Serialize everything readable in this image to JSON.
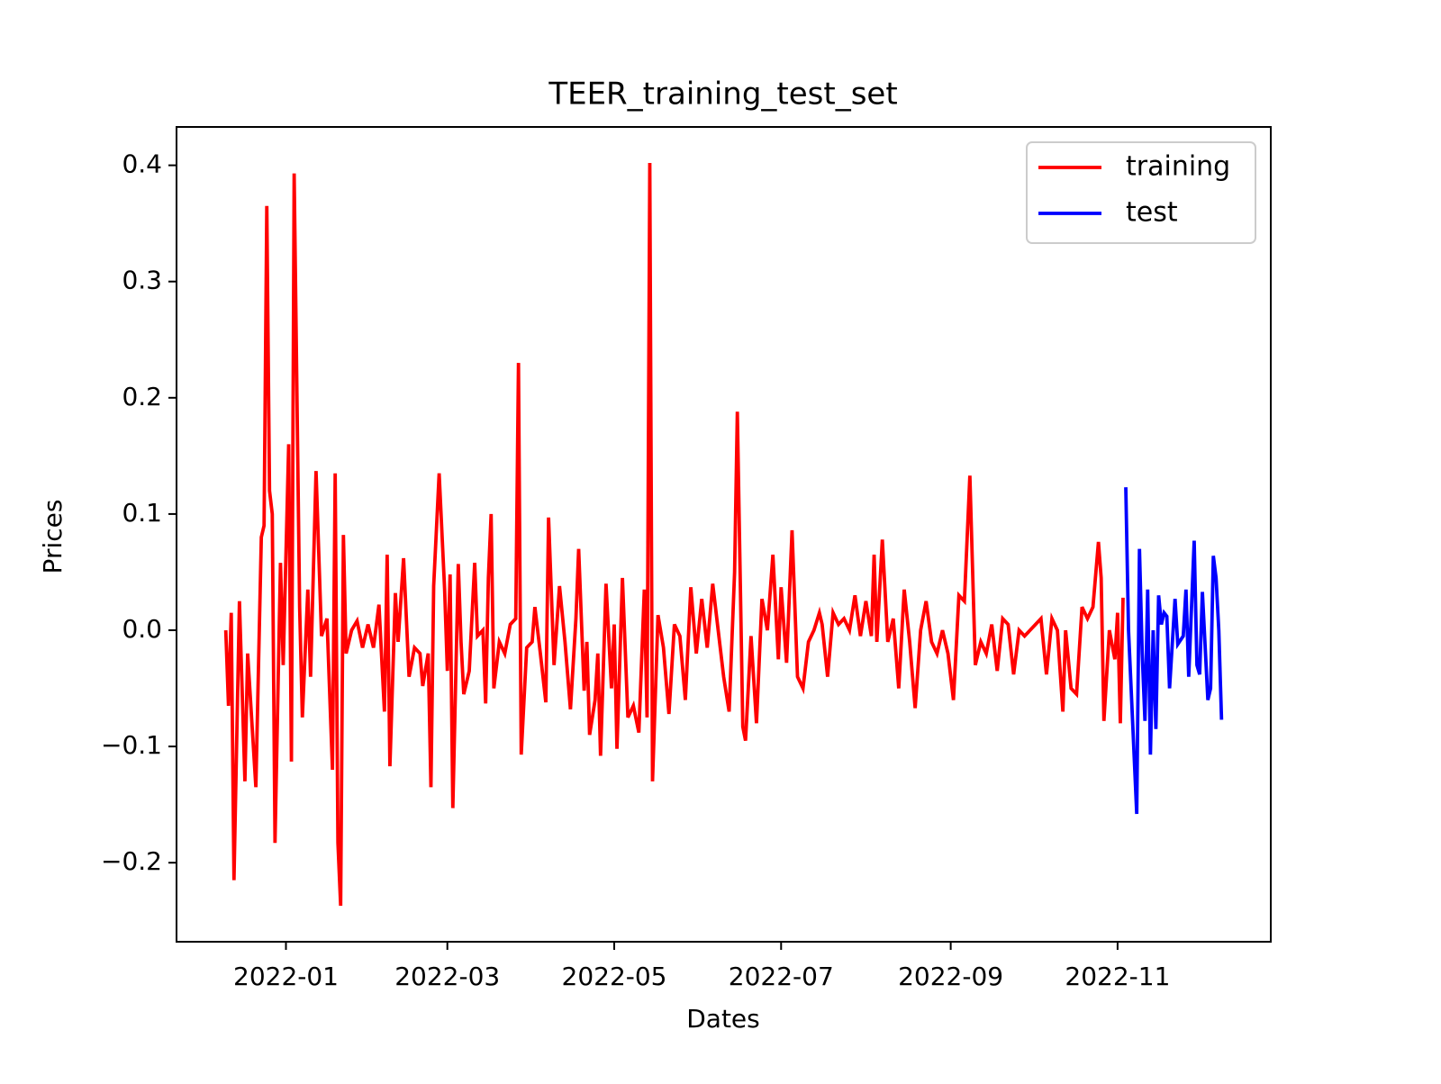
{
  "chart_data": {
    "type": "line",
    "title": "TEER_training_test_set",
    "xlabel": "Dates",
    "ylabel": "Prices",
    "legend": "upper right",
    "xlim": [
      "2021-11-22",
      "2022-12-27"
    ],
    "xticks": [
      {
        "value": "2022-01-01",
        "label": "2022-01"
      },
      {
        "value": "2022-03-01",
        "label": "2022-03"
      },
      {
        "value": "2022-05-01",
        "label": "2022-05"
      },
      {
        "value": "2022-07-01",
        "label": "2022-07"
      },
      {
        "value": "2022-09-01",
        "label": "2022-09"
      },
      {
        "value": "2022-11-01",
        "label": "2022-11"
      }
    ],
    "ylim": [
      -0.268,
      0.433
    ],
    "yticks": [
      {
        "value": -0.2,
        "label": "−0.2"
      },
      {
        "value": -0.1,
        "label": "−0.1"
      },
      {
        "value": 0,
        "label": "0.0"
      },
      0.1,
      0.2,
      0.3,
      0.4
    ],
    "series": [
      {
        "name": "training",
        "color": "#ff0000",
        "x": [
          "2021-12-10",
          "2021-12-11",
          "2021-12-12",
          "2021-12-13",
          "2021-12-15",
          "2021-12-17",
          "2021-12-18",
          "2021-12-21",
          "2021-12-23",
          "2021-12-24",
          "2021-12-25",
          "2021-12-26",
          "2021-12-27",
          "2021-12-28",
          "2021-12-30",
          "2021-12-31",
          "2022-01-02",
          "2022-01-03",
          "2022-01-04",
          "2022-01-06",
          "2022-01-07",
          "2022-01-09",
          "2022-01-10",
          "2022-01-12",
          "2022-01-14",
          "2022-01-16",
          "2022-01-18",
          "2022-01-19",
          "2022-01-20",
          "2022-01-21",
          "2022-01-22",
          "2022-01-23",
          "2022-01-25",
          "2022-01-27",
          "2022-01-29",
          "2022-01-31",
          "2022-02-02",
          "2022-02-04",
          "2022-02-06",
          "2022-02-07",
          "2022-02-08",
          "2022-02-10",
          "2022-02-11",
          "2022-02-13",
          "2022-02-15",
          "2022-02-17",
          "2022-02-19",
          "2022-02-20",
          "2022-02-22",
          "2022-02-23",
          "2022-02-24",
          "2022-02-26",
          "2022-02-28",
          "2022-03-01",
          "2022-03-02",
          "2022-03-03",
          "2022-03-05",
          "2022-03-06",
          "2022-03-07",
          "2022-03-09",
          "2022-03-11",
          "2022-03-12",
          "2022-03-14",
          "2022-03-15",
          "2022-03-16",
          "2022-03-17",
          "2022-03-18",
          "2022-03-20",
          "2022-03-22",
          "2022-03-24",
          "2022-03-26",
          "2022-03-27",
          "2022-03-28",
          "2022-03-30",
          "2022-04-01",
          "2022-04-02",
          "2022-04-04",
          "2022-04-06",
          "2022-04-07",
          "2022-04-09",
          "2022-04-11",
          "2022-04-13",
          "2022-04-15",
          "2022-04-17",
          "2022-04-18",
          "2022-04-20",
          "2022-04-21",
          "2022-04-22",
          "2022-04-24",
          "2022-04-25",
          "2022-04-26",
          "2022-04-28",
          "2022-04-30",
          "2022-05-01",
          "2022-05-02",
          "2022-05-04",
          "2022-05-06",
          "2022-05-08",
          "2022-05-10",
          "2022-05-12",
          "2022-05-13",
          "2022-05-14",
          "2022-05-15",
          "2022-05-17",
          "2022-05-19",
          "2022-05-21",
          "2022-05-23",
          "2022-05-25",
          "2022-05-27",
          "2022-05-29",
          "2022-05-31",
          "2022-06-02",
          "2022-06-04",
          "2022-06-06",
          "2022-06-08",
          "2022-06-10",
          "2022-06-12",
          "2022-06-14",
          "2022-06-15",
          "2022-06-17",
          "2022-06-18",
          "2022-06-20",
          "2022-06-22",
          "2022-06-24",
          "2022-06-26",
          "2022-06-28",
          "2022-06-30",
          "2022-07-01",
          "2022-07-03",
          "2022-07-05",
          "2022-07-07",
          "2022-07-09",
          "2022-07-11",
          "2022-07-13",
          "2022-07-15",
          "2022-07-16",
          "2022-07-18",
          "2022-07-20",
          "2022-07-22",
          "2022-07-24",
          "2022-07-26",
          "2022-07-28",
          "2022-07-30",
          "2022-08-01",
          "2022-08-03",
          "2022-08-04",
          "2022-08-05",
          "2022-08-07",
          "2022-08-09",
          "2022-08-11",
          "2022-08-13",
          "2022-08-15",
          "2022-08-17",
          "2022-08-19",
          "2022-08-21",
          "2022-08-23",
          "2022-08-25",
          "2022-08-27",
          "2022-08-29",
          "2022-08-31",
          "2022-09-02",
          "2022-09-04",
          "2022-09-06",
          "2022-09-08",
          "2022-09-10",
          "2022-09-12",
          "2022-09-14",
          "2022-09-16",
          "2022-09-18",
          "2022-09-20",
          "2022-09-22",
          "2022-09-24",
          "2022-09-26",
          "2022-09-28",
          "2022-09-30",
          "2022-10-02",
          "2022-10-04",
          "2022-10-06",
          "2022-10-08",
          "2022-10-10",
          "2022-10-12",
          "2022-10-13",
          "2022-10-15",
          "2022-10-17",
          "2022-10-19",
          "2022-10-21",
          "2022-10-23",
          "2022-10-25",
          "2022-10-26",
          "2022-10-27",
          "2022-10-29",
          "2022-10-31",
          "2022-11-01",
          "2022-11-02",
          "2022-11-03"
        ],
        "values": [
          0.0,
          -0.065,
          0.015,
          -0.215,
          0.025,
          -0.13,
          -0.02,
          -0.135,
          0.08,
          0.09,
          0.365,
          0.12,
          0.1,
          -0.183,
          0.058,
          -0.03,
          0.16,
          -0.113,
          0.393,
          0.02,
          -0.075,
          0.035,
          -0.04,
          0.137,
          -0.005,
          0.01,
          -0.12,
          0.135,
          -0.183,
          -0.237,
          0.082,
          -0.02,
          0.0,
          0.008,
          -0.015,
          0.005,
          -0.015,
          0.022,
          -0.07,
          0.065,
          -0.117,
          0.032,
          -0.01,
          0.062,
          -0.04,
          -0.015,
          -0.02,
          -0.048,
          -0.02,
          -0.135,
          0.038,
          0.135,
          0.035,
          -0.035,
          0.048,
          -0.153,
          0.057,
          -0.01,
          -0.055,
          -0.035,
          0.058,
          -0.005,
          0.0,
          -0.063,
          0.045,
          0.1,
          -0.05,
          -0.01,
          -0.02,
          0.005,
          0.01,
          0.23,
          -0.107,
          -0.015,
          -0.01,
          0.02,
          -0.02,
          -0.062,
          0.097,
          -0.03,
          0.038,
          -0.01,
          -0.068,
          0.01,
          0.07,
          -0.052,
          -0.01,
          -0.09,
          -0.06,
          -0.02,
          -0.108,
          0.04,
          -0.05,
          0.005,
          -0.102,
          0.045,
          -0.075,
          -0.065,
          -0.088,
          0.035,
          -0.075,
          0.402,
          -0.13,
          0.013,
          -0.015,
          -0.072,
          0.005,
          -0.005,
          -0.06,
          0.037,
          -0.02,
          0.027,
          -0.015,
          0.04,
          0.0,
          -0.04,
          -0.07,
          0.05,
          0.188,
          -0.083,
          -0.095,
          -0.005,
          -0.08,
          0.027,
          0.0,
          0.065,
          -0.025,
          0.037,
          -0.028,
          0.086,
          -0.04,
          -0.05,
          -0.01,
          0.0,
          0.015,
          0.005,
          -0.04,
          0.015,
          0.005,
          0.01,
          0.0,
          0.03,
          -0.005,
          0.025,
          -0.005,
          0.065,
          -0.01,
          0.078,
          -0.01,
          0.01,
          -0.05,
          0.035,
          -0.01,
          -0.067,
          0.0,
          0.025,
          -0.01,
          -0.02,
          0.0,
          -0.02,
          -0.06,
          0.03,
          0.025,
          0.133,
          -0.03,
          -0.01,
          -0.02,
          0.005,
          -0.035,
          0.01,
          0.005,
          -0.038,
          0.0,
          -0.005,
          0.0,
          0.005,
          0.01,
          -0.038,
          0.01,
          0.0,
          -0.07,
          0.0,
          -0.05,
          -0.055,
          0.02,
          0.01,
          0.02,
          0.076,
          0.045,
          -0.078,
          0.0,
          -0.025,
          0.015,
          -0.08,
          0.028
        ]
      },
      {
        "name": "test",
        "color": "#0000ff",
        "x": [
          "2022-11-04",
          "2022-11-05",
          "2022-11-08",
          "2022-11-09",
          "2022-11-10",
          "2022-11-11",
          "2022-11-12",
          "2022-11-13",
          "2022-11-14",
          "2022-11-15",
          "2022-11-16",
          "2022-11-17",
          "2022-11-18",
          "2022-11-19",
          "2022-11-20",
          "2022-11-22",
          "2022-11-23",
          "2022-11-25",
          "2022-11-26",
          "2022-11-27",
          "2022-11-29",
          "2022-11-30",
          "2022-12-01",
          "2022-12-02",
          "2022-12-04",
          "2022-12-05",
          "2022-12-06",
          "2022-12-07",
          "2022-12-08",
          "2022-12-09"
        ],
        "values": [
          0.123,
          0.0,
          -0.158,
          0.07,
          -0.02,
          -0.078,
          0.035,
          -0.107,
          0.0,
          -0.085,
          0.03,
          0.005,
          0.015,
          0.012,
          -0.05,
          0.027,
          -0.012,
          -0.005,
          0.035,
          -0.04,
          0.077,
          -0.03,
          -0.038,
          0.033,
          -0.06,
          -0.05,
          0.064,
          0.045,
          0.0,
          -0.077
        ]
      }
    ]
  }
}
